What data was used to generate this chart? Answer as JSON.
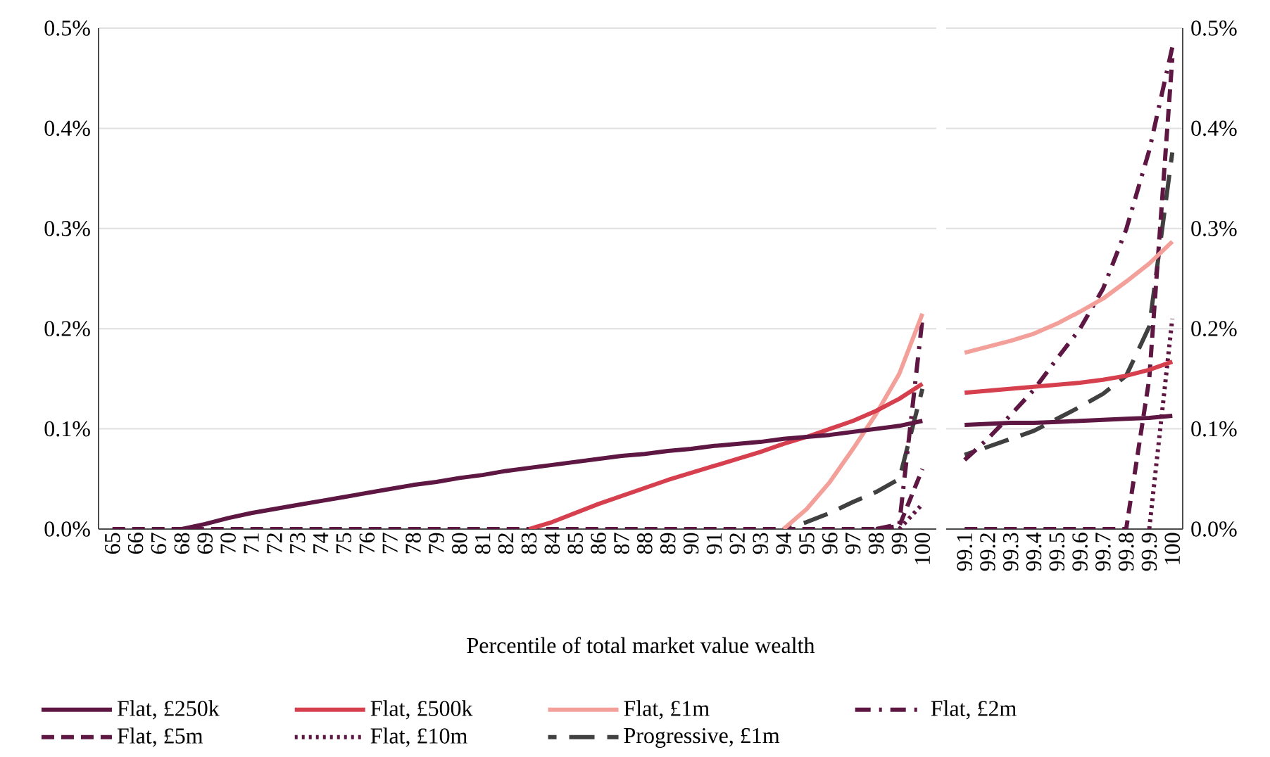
{
  "chart_data": [
    {
      "type": "line",
      "xlabel": "Percentile of total market value wealth",
      "grid": "y",
      "legend": "bottom",
      "categories": [
        "65",
        "66",
        "67",
        "68",
        "69",
        "70",
        "71",
        "72",
        "73",
        "74",
        "75",
        "76",
        "77",
        "78",
        "79",
        "80",
        "81",
        "82",
        "83",
        "84",
        "85",
        "86",
        "87",
        "88",
        "89",
        "90",
        "91",
        "92",
        "93",
        "94",
        "95",
        "96",
        "97",
        "98",
        "99",
        "100"
      ],
      "ylim": [
        0,
        0.5
      ],
      "yticks": [
        {
          "value": 0,
          "label": "0.0%"
        },
        {
          "value": 0.1,
          "label": "0.1%"
        },
        {
          "value": 0.2,
          "label": "0.2%"
        },
        {
          "value": 0.3,
          "label": "0.3%"
        },
        {
          "value": 0.4,
          "label": "0.4%"
        },
        {
          "value": 0.5,
          "label": "0.5%"
        }
      ],
      "series": [
        {
          "name": "Flat, £250k",
          "color": "#5e1742",
          "line_style": "solid",
          "values": [
            null,
            null,
            null,
            0,
            0.005,
            0.011,
            0.016,
            0.02,
            0.024,
            0.028,
            0.032,
            0.036,
            0.04,
            0.044,
            0.047,
            0.051,
            0.054,
            0.058,
            0.061,
            0.064,
            0.067,
            0.07,
            0.073,
            0.075,
            0.078,
            0.08,
            0.083,
            0.085,
            0.087,
            0.09,
            0.092,
            0.094,
            0.097,
            0.1,
            0.103,
            0.108
          ]
        },
        {
          "name": "Flat, £500k",
          "color": "#d6404e",
          "line_style": "solid",
          "values": [
            null,
            null,
            null,
            null,
            null,
            null,
            null,
            null,
            null,
            null,
            null,
            null,
            null,
            null,
            null,
            null,
            null,
            null,
            0,
            0.007,
            0.016,
            0.025,
            0.033,
            0.041,
            0.049,
            0.056,
            0.063,
            0.07,
            0.077,
            0.085,
            0.092,
            0.1,
            0.108,
            0.118,
            0.13,
            0.145
          ]
        },
        {
          "name": "Flat, £1m",
          "color": "#f4a09a",
          "line_style": "solid",
          "values": [
            null,
            null,
            null,
            null,
            null,
            null,
            null,
            null,
            null,
            null,
            null,
            null,
            null,
            null,
            null,
            null,
            null,
            null,
            null,
            null,
            null,
            null,
            null,
            null,
            null,
            null,
            null,
            null,
            null,
            0,
            0.02,
            0.047,
            0.08,
            0.115,
            0.155,
            0.215
          ]
        },
        {
          "name": "Flat, £2m",
          "color": "#5e1742",
          "line_style": "dashdot",
          "values": [
            null,
            null,
            null,
            null,
            null,
            null,
            null,
            null,
            null,
            null,
            null,
            null,
            null,
            null,
            null,
            null,
            null,
            null,
            null,
            null,
            null,
            null,
            null,
            null,
            null,
            null,
            null,
            null,
            null,
            null,
            null,
            null,
            null,
            0,
            0.005,
            0.21
          ]
        },
        {
          "name": "Flat, £5m",
          "color": "#5e1742",
          "line_style": "dashed",
          "values": [
            0,
            0,
            0,
            0,
            0,
            0,
            0,
            0,
            0,
            0,
            0,
            0,
            0,
            0,
            0,
            0,
            0,
            0,
            0,
            0,
            0,
            0,
            0,
            0,
            0,
            0,
            0,
            0,
            0,
            0,
            0,
            0,
            0,
            0,
            0.003,
            0.06
          ]
        },
        {
          "name": "Flat, £10m",
          "color": "#5e1742",
          "line_style": "dotted",
          "values": [
            null,
            null,
            null,
            null,
            null,
            null,
            null,
            null,
            null,
            null,
            null,
            null,
            null,
            null,
            null,
            null,
            null,
            null,
            null,
            null,
            null,
            null,
            null,
            null,
            null,
            null,
            null,
            null,
            null,
            null,
            null,
            null,
            null,
            null,
            0,
            0.025
          ]
        },
        {
          "name": "Progressive, £1m",
          "color": "#404040",
          "line_style": "longdash",
          "values": [
            null,
            null,
            null,
            null,
            null,
            null,
            null,
            null,
            null,
            null,
            null,
            null,
            null,
            null,
            null,
            null,
            null,
            null,
            null,
            null,
            null,
            null,
            null,
            null,
            null,
            null,
            null,
            null,
            null,
            0,
            0.007,
            0.016,
            0.027,
            0.037,
            0.05,
            0.14
          ]
        }
      ]
    },
    {
      "type": "line",
      "grid": "y",
      "categories": [
        "99.1",
        "99.2",
        "99.3",
        "99.4",
        "99.5",
        "99.6",
        "99.7",
        "99.8",
        "99.9",
        "100"
      ],
      "ylim": [
        0,
        0.5
      ],
      "yticks": [
        {
          "value": 0,
          "label": "0.0%"
        },
        {
          "value": 0.1,
          "label": "0.1%"
        },
        {
          "value": 0.2,
          "label": "0.2%"
        },
        {
          "value": 0.3,
          "label": "0.3%"
        },
        {
          "value": 0.4,
          "label": "0.4%"
        },
        {
          "value": 0.5,
          "label": "0.5%"
        }
      ],
      "series": [
        {
          "color": "#5e1742",
          "line_style": "solid",
          "values": [
            0.104,
            0.105,
            0.106,
            0.106,
            0.107,
            0.108,
            0.109,
            0.11,
            0.111,
            0.113
          ]
        },
        {
          "color": "#d6404e",
          "line_style": "solid",
          "values": [
            0.136,
            0.138,
            0.14,
            0.142,
            0.144,
            0.146,
            0.149,
            0.153,
            0.159,
            0.167
          ]
        },
        {
          "color": "#f4a09a",
          "line_style": "solid",
          "values": [
            0.176,
            0.182,
            0.188,
            0.195,
            0.205,
            0.217,
            0.23,
            0.247,
            0.265,
            0.287
          ]
        },
        {
          "color": "#5e1742",
          "line_style": "dashdot",
          "values": [
            0.069,
            0.09,
            0.114,
            0.139,
            0.17,
            0.2,
            0.24,
            0.299,
            0.378,
            0.481
          ]
        },
        {
          "color": "#5e1742",
          "line_style": "dashed",
          "values": [
            0,
            0,
            0,
            0,
            0,
            0,
            0,
            0,
            0.15,
            0.47
          ]
        },
        {
          "color": "#5e1742",
          "line_style": "dotted",
          "values": [
            null,
            null,
            null,
            null,
            null,
            null,
            null,
            null,
            0,
            0.21
          ]
        },
        {
          "color": "#404040",
          "line_style": "longdash",
          "values": [
            0.074,
            0.082,
            0.09,
            0.098,
            0.11,
            0.122,
            0.135,
            0.153,
            0.202,
            0.376
          ]
        }
      ]
    }
  ]
}
